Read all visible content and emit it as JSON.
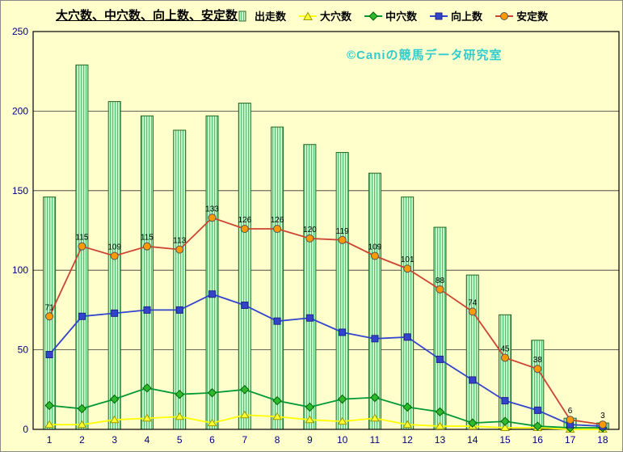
{
  "title": {
    "text": "大穴数、中穴数、向上数、安定数"
  },
  "watermark": {
    "text": "©Caniの競馬データ研究室",
    "color": "#33CCCC"
  },
  "chart_data": {
    "type": "bar+line",
    "title": "大穴数、中穴数、向上数、安定数",
    "categories": [
      "1",
      "2",
      "3",
      "4",
      "5",
      "6",
      "7",
      "8",
      "9",
      "10",
      "11",
      "12",
      "13",
      "14",
      "15",
      "16",
      "17",
      "18"
    ],
    "y_axis": {
      "min": 0,
      "max": 250,
      "step": 50,
      "tick_labels": [
        "0",
        "50",
        "100",
        "150",
        "200",
        "250"
      ]
    },
    "axis_label_color": "#000080",
    "grid_color": "#333333",
    "legend_position": "top",
    "grid": true,
    "series": [
      {
        "name": "出走数",
        "type": "bar",
        "fill": "#CCFFCC",
        "stripe": "#55BB77",
        "stroke": "#226622",
        "values": [
          146,
          229,
          206,
          197,
          188,
          197,
          205,
          190,
          179,
          174,
          161,
          146,
          127,
          97,
          72,
          56,
          7,
          4
        ]
      },
      {
        "name": "大穴数",
        "type": "line",
        "marker": "triangle",
        "line_color": "#FFFF00",
        "marker_fill": "#FFFF33",
        "marker_stroke": "#999900",
        "values": [
          3,
          3,
          6,
          7,
          8,
          4,
          9,
          8,
          6,
          5,
          7,
          3,
          2,
          2,
          1,
          1,
          0,
          0
        ]
      },
      {
        "name": "中穴数",
        "type": "line",
        "marker": "diamond",
        "line_color": "#009933",
        "marker_fill": "#2EB82E",
        "marker_stroke": "#006600",
        "values": [
          15,
          13,
          19,
          26,
          22,
          23,
          25,
          18,
          14,
          19,
          20,
          14,
          11,
          4,
          5,
          2,
          1,
          1
        ]
      },
      {
        "name": "向上数",
        "type": "line",
        "marker": "square",
        "line_color": "#3344CC",
        "marker_fill": "#3344CC",
        "marker_stroke": "#222288",
        "values": [
          47,
          71,
          73,
          75,
          75,
          85,
          78,
          68,
          70,
          61,
          57,
          58,
          44,
          31,
          18,
          12,
          3,
          2
        ]
      },
      {
        "name": "安定数",
        "type": "line",
        "marker": "circle",
        "line_color": "#CC4433",
        "marker_fill": "#FF9900",
        "marker_stroke": "#555555",
        "show_labels": true,
        "values": [
          71,
          115,
          109,
          115,
          113,
          133,
          126,
          126,
          120,
          119,
          109,
          101,
          88,
          74,
          45,
          38,
          6,
          3
        ]
      }
    ]
  }
}
